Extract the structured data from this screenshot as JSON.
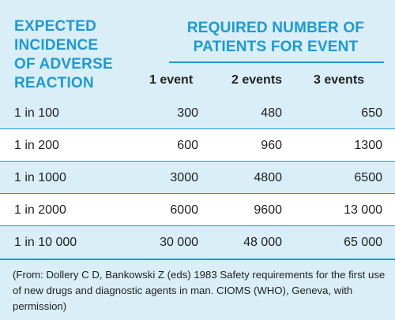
{
  "header": {
    "left_lines": [
      "EXPECTED",
      "INCIDENCE",
      "OF ADVERSE",
      "REACTION"
    ],
    "right_lines": [
      "REQUIRED NUMBER OF",
      "PATIENTS FOR EVENT"
    ],
    "columns": [
      "1 event",
      "2 events",
      "3 events"
    ]
  },
  "rows": [
    {
      "label": "1 in 100",
      "v1": "300",
      "v2": "480",
      "v3": "650"
    },
    {
      "label": "1 in 200",
      "v1": "600",
      "v2": "960",
      "v3": "1300"
    },
    {
      "label": "1 in 1000",
      "v1": "3000",
      "v2": "4800",
      "v3": "6500"
    },
    {
      "label": "1 in 2000",
      "v1": "6000",
      "v2": "9600",
      "v3": "13 000"
    },
    {
      "label": "1 in 10 000",
      "v1": "30 000",
      "v2": "48 000",
      "v3": "65 000"
    }
  ],
  "footnote": "(From: Dollery C D, Bankowski Z (eds) 1983 Safety requirements for the first use of new drugs and diagnostic agents in man. CIOMS (WHO), Geneva, with permission)",
  "colors": {
    "accent": "#1c9ad6",
    "band": "#d9eef7",
    "alt_band": "#ffffff"
  }
}
